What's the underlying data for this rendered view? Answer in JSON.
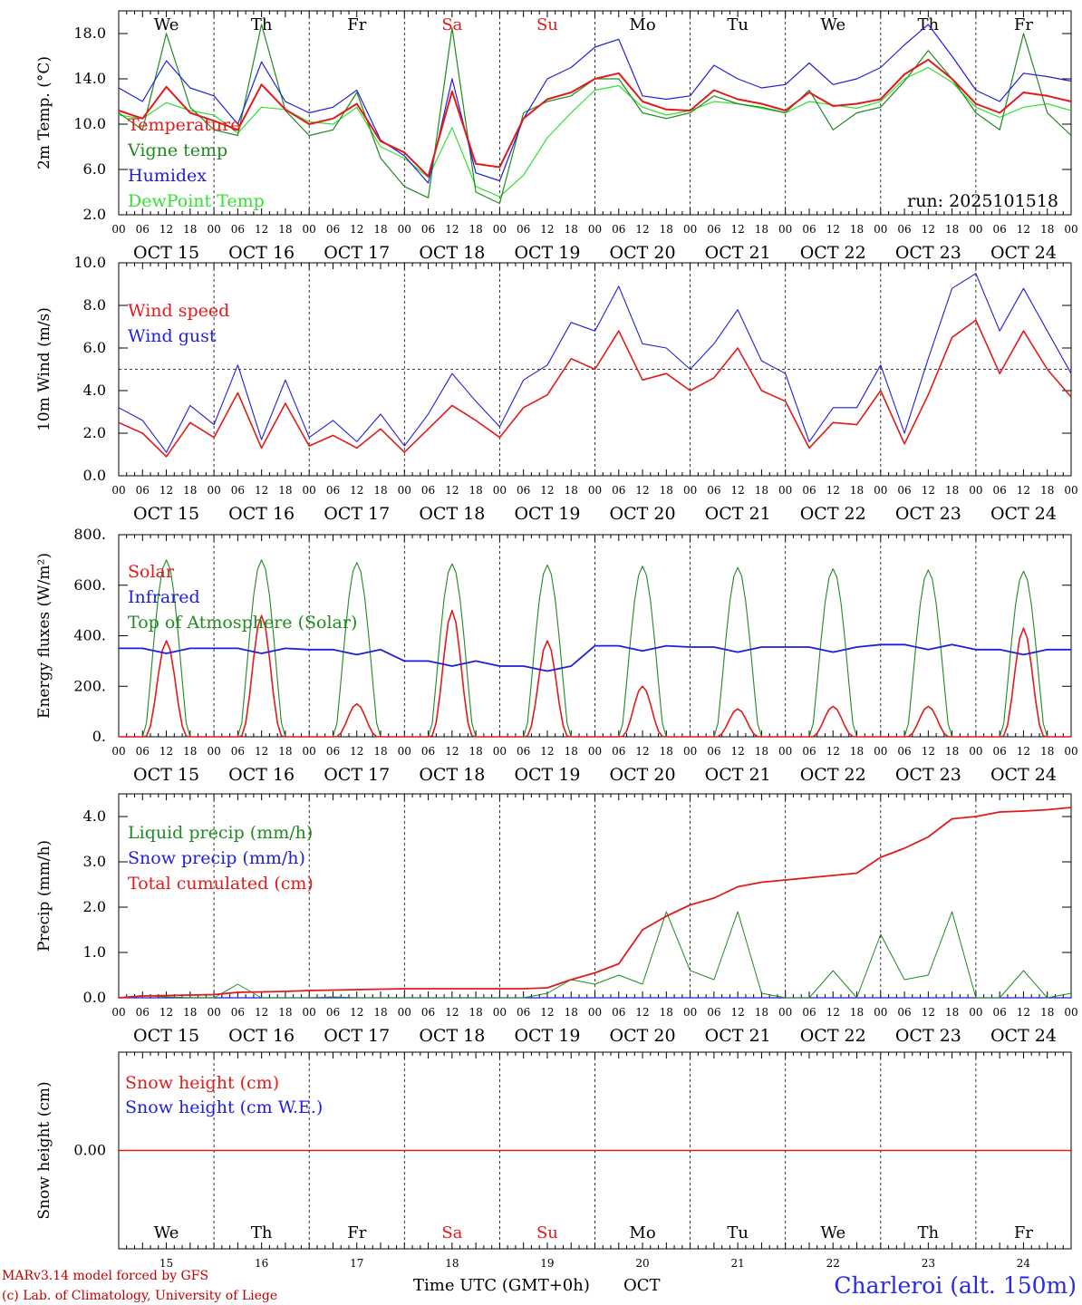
{
  "colors": {
    "red": "#e01b1b",
    "green": "#1f8a1f",
    "blue": "#1f1fd8",
    "lightgreen": "#33e033",
    "weekend": "#e01b1b"
  },
  "axis": {
    "days": [
      "OCT 15",
      "OCT 16",
      "OCT 17",
      "OCT 18",
      "OCT 19",
      "OCT 20",
      "OCT 21",
      "OCT 22",
      "OCT 23",
      "OCT 24"
    ],
    "hour_labels": [
      "00",
      "06",
      "12",
      "18"
    ],
    "final_hour_label": "00",
    "weekdays": [
      "We",
      "Th",
      "Fr",
      "Sa",
      "Su",
      "Mo",
      "Tu",
      "We",
      "Th",
      "Fr"
    ],
    "weekend_index": [
      3,
      4
    ],
    "day_numbers": [
      "15",
      "16",
      "17",
      "18",
      "19",
      "20",
      "21",
      "22",
      "23",
      "24"
    ]
  },
  "chart_data": [
    {
      "id": "temp",
      "type": "line",
      "ylabel": "2m Temp. (°C)",
      "ylim": [
        2,
        20
      ],
      "yticks": [
        2,
        6,
        10,
        14,
        18
      ],
      "ytick_labels": [
        "2.0",
        "6.0",
        "10.0",
        "14.0",
        "18.0"
      ],
      "run_label": "run: 2025101518",
      "x_hours": [
        0,
        6,
        12,
        18,
        24,
        30,
        36,
        42,
        48,
        54,
        60,
        66,
        72,
        78,
        84,
        90,
        96,
        102,
        108,
        114,
        120,
        126,
        132,
        138,
        144,
        150,
        156,
        162,
        168,
        174,
        180,
        186,
        192,
        198,
        204,
        210,
        216,
        222,
        228,
        234,
        240
      ],
      "series": [
        {
          "name": "Temperature",
          "color": "red",
          "values": [
            11.2,
            10.5,
            13.3,
            11.0,
            10.3,
            9.5,
            13.5,
            11.3,
            10.0,
            10.5,
            11.8,
            8.5,
            7.5,
            5.4,
            12.9,
            6.5,
            6.2,
            10.5,
            12.2,
            12.8,
            14.0,
            14.5,
            12.0,
            11.3,
            11.2,
            13.0,
            12.2,
            11.8,
            11.2,
            12.8,
            11.6,
            11.8,
            12.2,
            14.4,
            15.7,
            14.0,
            11.8,
            11.0,
            12.8,
            12.5,
            12.0
          ]
        },
        {
          "name": "Vigne temp",
          "color": "green",
          "values": [
            11.0,
            9.5,
            18.0,
            11.5,
            9.5,
            9.0,
            18.8,
            11.2,
            9.0,
            9.5,
            12.8,
            7.0,
            4.5,
            3.5,
            18.5,
            4.0,
            3.0,
            11.0,
            12.0,
            12.5,
            14.0,
            14.0,
            11.0,
            10.5,
            11.0,
            12.5,
            11.8,
            11.5,
            11.0,
            13.0,
            9.5,
            11.0,
            11.5,
            13.8,
            16.5,
            14.0,
            11.0,
            9.5,
            18.0,
            11.0,
            9.0
          ]
        },
        {
          "name": "Humidex",
          "color": "blue",
          "values": [
            13.2,
            12.0,
            15.6,
            13.2,
            12.5,
            10.0,
            15.5,
            12.0,
            11.0,
            11.5,
            13.0,
            8.6,
            7.2,
            4.8,
            14.0,
            5.7,
            5.0,
            10.5,
            14.0,
            15.0,
            16.8,
            17.5,
            12.5,
            12.2,
            12.5,
            15.2,
            14.0,
            13.2,
            13.5,
            15.4,
            13.5,
            14.0,
            15.0,
            17.0,
            18.8,
            16.0,
            13.0,
            12.0,
            14.5,
            14.2,
            13.8
          ]
        },
        {
          "name": "DewPoint Temp",
          "color": "lightgreen",
          "values": [
            10.8,
            10.5,
            11.9,
            11.2,
            10.8,
            9.2,
            11.5,
            11.3,
            10.2,
            10.0,
            11.5,
            8.0,
            7.0,
            5.3,
            9.7,
            4.5,
            3.6,
            5.5,
            8.8,
            11.0,
            13.0,
            13.4,
            11.5,
            10.8,
            11.2,
            12.0,
            11.8,
            11.4,
            11.0,
            12.0,
            11.7,
            11.4,
            12.0,
            14.0,
            15.0,
            13.7,
            11.5,
            10.6,
            11.5,
            11.8,
            11.2
          ]
        }
      ]
    },
    {
      "id": "wind",
      "type": "line",
      "ylabel": "10m Wind (m/s)",
      "ylim": [
        0,
        10
      ],
      "yticks": [
        0,
        2,
        4,
        6,
        8,
        10
      ],
      "ytick_labels": [
        "0.0",
        "2.0",
        "4.0",
        "6.0",
        "8.0",
        "10.0"
      ],
      "reference_line": 5,
      "x_hours": [
        0,
        6,
        12,
        18,
        24,
        30,
        36,
        42,
        48,
        54,
        60,
        66,
        72,
        78,
        84,
        90,
        96,
        102,
        108,
        114,
        120,
        126,
        132,
        138,
        144,
        150,
        156,
        162,
        168,
        174,
        180,
        186,
        192,
        198,
        204,
        210,
        216,
        222,
        228,
        234,
        240
      ],
      "series": [
        {
          "name": "Wind speed",
          "color": "red",
          "values": [
            2.5,
            2.0,
            0.9,
            2.5,
            1.8,
            3.9,
            1.3,
            3.4,
            1.4,
            1.9,
            1.3,
            2.2,
            1.1,
            2.2,
            3.3,
            2.6,
            1.8,
            3.2,
            3.8,
            5.5,
            5.0,
            6.8,
            4.5,
            4.8,
            4.0,
            4.6,
            6.0,
            4.0,
            3.5,
            1.3,
            2.5,
            2.4,
            4.0,
            1.5,
            3.8,
            6.5,
            7.3,
            4.8,
            6.8,
            5.0,
            3.7
          ]
        },
        {
          "name": "Wind gust",
          "color": "blue",
          "values": [
            3.2,
            2.6,
            1.1,
            3.3,
            2.4,
            5.2,
            1.7,
            4.5,
            1.8,
            2.6,
            1.6,
            2.9,
            1.4,
            2.9,
            4.8,
            3.5,
            2.3,
            4.5,
            5.2,
            7.2,
            6.8,
            8.9,
            6.2,
            6.0,
            5.0,
            6.2,
            7.8,
            5.4,
            4.8,
            1.6,
            3.2,
            3.2,
            5.2,
            2.0,
            5.5,
            8.8,
            9.5,
            6.8,
            8.8,
            6.8,
            4.8
          ]
        }
      ]
    },
    {
      "id": "energy",
      "type": "line",
      "ylabel": "Energy fluxes (W/m²)",
      "ylim": [
        0,
        800
      ],
      "yticks": [
        0,
        200,
        400,
        600,
        800
      ],
      "ytick_labels": [
        "0.",
        "200.",
        "400.",
        "600.",
        "800."
      ],
      "solar_noon_hour": 12,
      "daylight_hours": [
        6.5,
        17.5
      ],
      "toa_peaks": [
        700,
        700,
        690,
        685,
        680,
        675,
        670,
        665,
        660,
        655
      ],
      "solar_peaks": [
        380,
        480,
        130,
        500,
        380,
        200,
        110,
        120,
        120,
        430
      ],
      "infrared_daily": [
        350,
        350,
        345,
        300,
        280,
        360,
        355,
        355,
        365,
        345
      ],
      "series": [
        {
          "name": "Solar",
          "color": "red"
        },
        {
          "name": "Infrared",
          "color": "blue"
        },
        {
          "name": "Top of Atmosphere (Solar)",
          "color": "green"
        }
      ]
    },
    {
      "id": "precip",
      "type": "line",
      "ylabel": "Precip (mm/h)",
      "ylim": [
        0,
        4.5
      ],
      "yticks": [
        0,
        1,
        2,
        3,
        4
      ],
      "ytick_labels": [
        "0.0",
        "1.0",
        "2.0",
        "3.0",
        "4.0"
      ],
      "x_hours": [
        0,
        6,
        12,
        18,
        24,
        30,
        36,
        42,
        48,
        54,
        60,
        66,
        72,
        78,
        84,
        90,
        96,
        102,
        108,
        114,
        120,
        126,
        132,
        138,
        144,
        150,
        156,
        162,
        168,
        174,
        180,
        186,
        192,
        198,
        204,
        210,
        216,
        222,
        228,
        234,
        240
      ],
      "series": [
        {
          "name": "Liquid precip (mm/h)",
          "color": "green",
          "values": [
            0.0,
            0.05,
            0.02,
            0.0,
            0.0,
            0.3,
            0.0,
            0.0,
            0.0,
            0.02,
            0.0,
            0.0,
            0.0,
            0.0,
            0.0,
            0.0,
            0.0,
            0.0,
            0.1,
            0.4,
            0.3,
            0.5,
            0.3,
            1.9,
            0.6,
            0.4,
            1.9,
            0.1,
            0.0,
            0.0,
            0.6,
            0.0,
            1.4,
            0.4,
            0.5,
            1.9,
            0.0,
            0.0,
            0.6,
            0.0,
            0.1
          ]
        },
        {
          "name": "Snow precip (mm/h)",
          "color": "blue",
          "values": [
            0,
            0,
            0,
            0,
            0,
            0,
            0,
            0,
            0,
            0,
            0,
            0,
            0,
            0,
            0,
            0,
            0,
            0,
            0,
            0,
            0,
            0,
            0,
            0,
            0,
            0,
            0,
            0,
            0,
            0,
            0,
            0,
            0,
            0,
            0,
            0,
            0,
            0,
            0,
            0,
            0
          ]
        },
        {
          "name": "Total cumulated (cm)",
          "color": "red",
          "values": [
            0.0,
            0.04,
            0.05,
            0.06,
            0.07,
            0.12,
            0.13,
            0.14,
            0.16,
            0.17,
            0.18,
            0.19,
            0.2,
            0.2,
            0.2,
            0.2,
            0.2,
            0.2,
            0.22,
            0.4,
            0.55,
            0.75,
            1.5,
            1.8,
            2.05,
            2.2,
            2.45,
            2.55,
            2.6,
            2.65,
            2.7,
            2.75,
            3.1,
            3.3,
            3.55,
            3.95,
            4.0,
            4.1,
            4.12,
            4.15,
            4.2
          ]
        }
      ]
    },
    {
      "id": "snow",
      "type": "line",
      "ylabel": "Snow height (cm)",
      "ylim": [
        -1,
        1
      ],
      "yticks": [
        0
      ],
      "ytick_labels": [
        "0.00"
      ],
      "series": [
        {
          "name": "Snow height (cm)",
          "color": "red",
          "values": [
            0,
            0
          ]
        },
        {
          "name": "Snow height (cm W.E.)",
          "color": "blue",
          "values": [
            0,
            0
          ]
        }
      ]
    }
  ],
  "footer": {
    "model_line": "MARv3.14 model forced by GFS",
    "credit_line": "(c) Lab. of Climatology, University of Liege",
    "xaxis_title": "Time UTC (GMT+0h)",
    "month": "OCT",
    "station": "Charleroi (alt. 150m)"
  }
}
